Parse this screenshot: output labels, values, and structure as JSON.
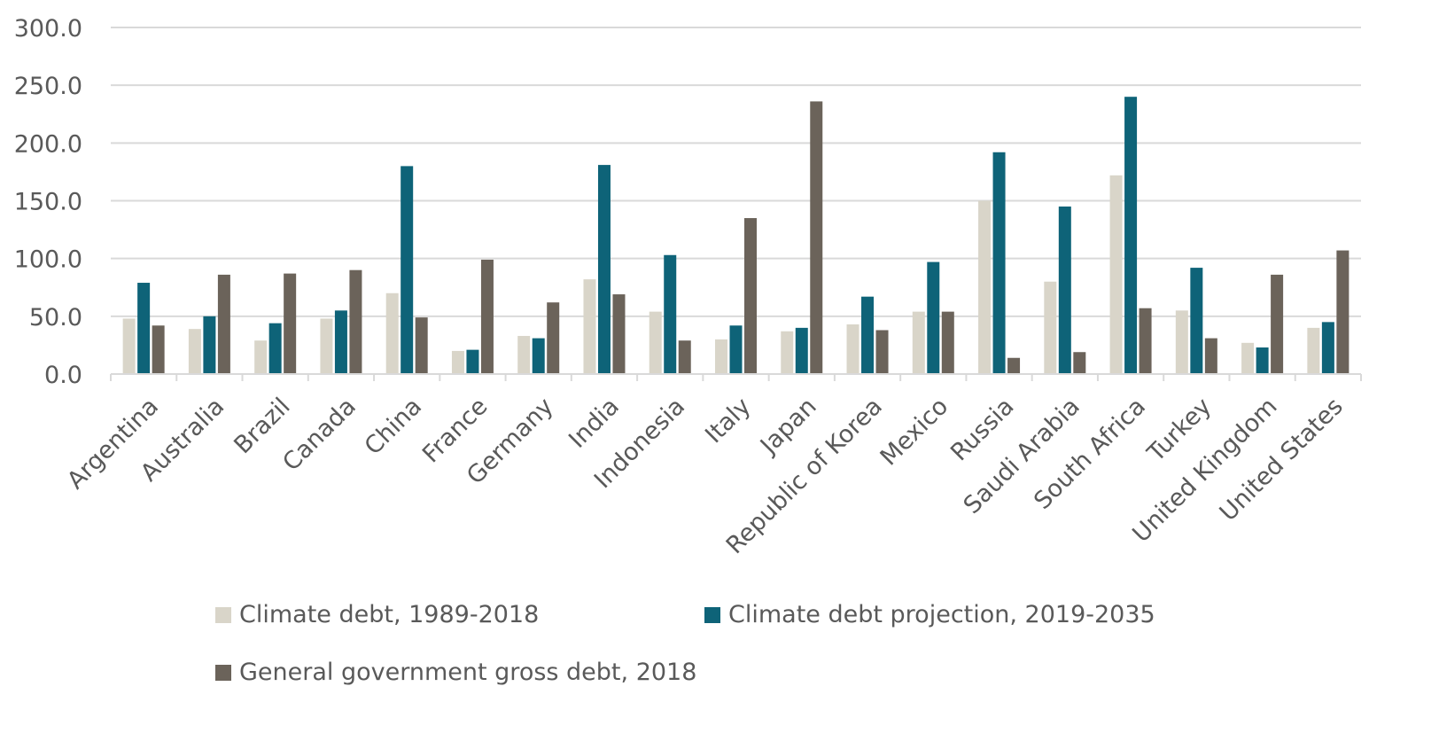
{
  "chart_data": {
    "type": "bar",
    "categories": [
      "Argentina",
      "Australia",
      "Brazil",
      "Canada",
      "China",
      "France",
      "Germany",
      "India",
      "Indonesia",
      "Italy",
      "Japan",
      "Republic of Korea",
      "Mexico",
      "Russia",
      "Saudi Arabia",
      "South Africa",
      "Turkey",
      "United Kingdom",
      "United States"
    ],
    "series": [
      {
        "name": "Climate debt, 1989-2018",
        "color": "#d9d5c9",
        "values": [
          48,
          39,
          29,
          48,
          70,
          20,
          33,
          82,
          54,
          30,
          37,
          43,
          54,
          150,
          80,
          172,
          55,
          27,
          40
        ]
      },
      {
        "name": "Climate debt projection, 2019-2035",
        "color": "#0e6378",
        "values": [
          79,
          50,
          44,
          55,
          180,
          21,
          31,
          181,
          103,
          42,
          40,
          67,
          97,
          192,
          145,
          240,
          92,
          23,
          45
        ]
      },
      {
        "name": "General government gross debt, 2018",
        "color": "#6b635a",
        "values": [
          42,
          86,
          87,
          90,
          49,
          99,
          62,
          69,
          29,
          135,
          236,
          38,
          54,
          14,
          19,
          57,
          31,
          86,
          107
        ]
      }
    ],
    "y_ticks": [
      "0.0",
      "50.0",
      "100.0",
      "150.0",
      "200.0",
      "250.0",
      "300.0"
    ],
    "ylim": [
      0,
      300
    ],
    "grid": true,
    "legend_position": "bottom",
    "title": "",
    "xlabel": "",
    "ylabel": ""
  }
}
